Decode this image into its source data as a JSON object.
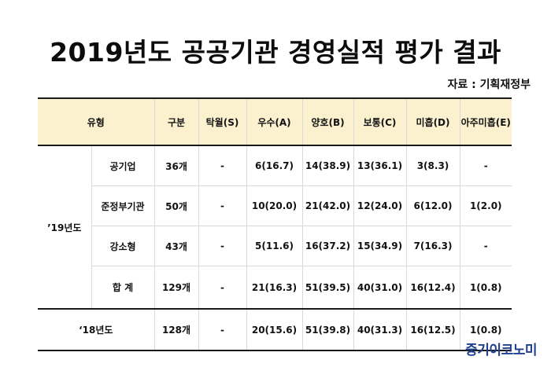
{
  "title": "2019년도 공공기관 경영실적 평가 결과",
  "source": "자료 : 기획재정부",
  "headers": [
    "유형",
    "구분",
    "탁월(S)",
    "우수(A)",
    "양호(B)",
    "보통(C)",
    "미흡(D)",
    "아주미흡(E)"
  ],
  "group_label": "’19년도",
  "rows": [
    {
      "type": "공기업",
      "count": "36개",
      "s": "-",
      "a": "6(16.7)",
      "b": "14(38.9)",
      "c": "13(36.1)",
      "d": "3(8.3)",
      "e": "-"
    },
    {
      "type": "준정부기관",
      "count": "50개",
      "s": "-",
      "a": "10(20.0)",
      "b": "21(42.0)",
      "c": "12(24.0)",
      "d": "6(12.0)",
      "e": "1(2.0)"
    },
    {
      "type": "강소형",
      "count": "43개",
      "s": "-",
      "a": "5(11.6)",
      "b": "16(37.2)",
      "c": "15(34.9)",
      "d": "7(16.3)",
      "e": "-"
    },
    {
      "type": "합 계",
      "count": "129개",
      "s": "-",
      "a": "21(16.3)",
      "b": "51(39.5)",
      "c": "40(31.0)",
      "d": "16(12.4)",
      "e": "1(0.8)"
    }
  ],
  "prev_row": {
    "label": "‘18년도",
    "count": "128개",
    "s": "-",
    "a": "20(15.6)",
    "b": "51(39.8)",
    "c": "40(31.3)",
    "d": "16(12.5)",
    "e": "1(0.8)"
  },
  "logo": "중기이코노미",
  "colors": {
    "header_bg": "#fbf1cf",
    "logo": "#1f3f8f"
  }
}
